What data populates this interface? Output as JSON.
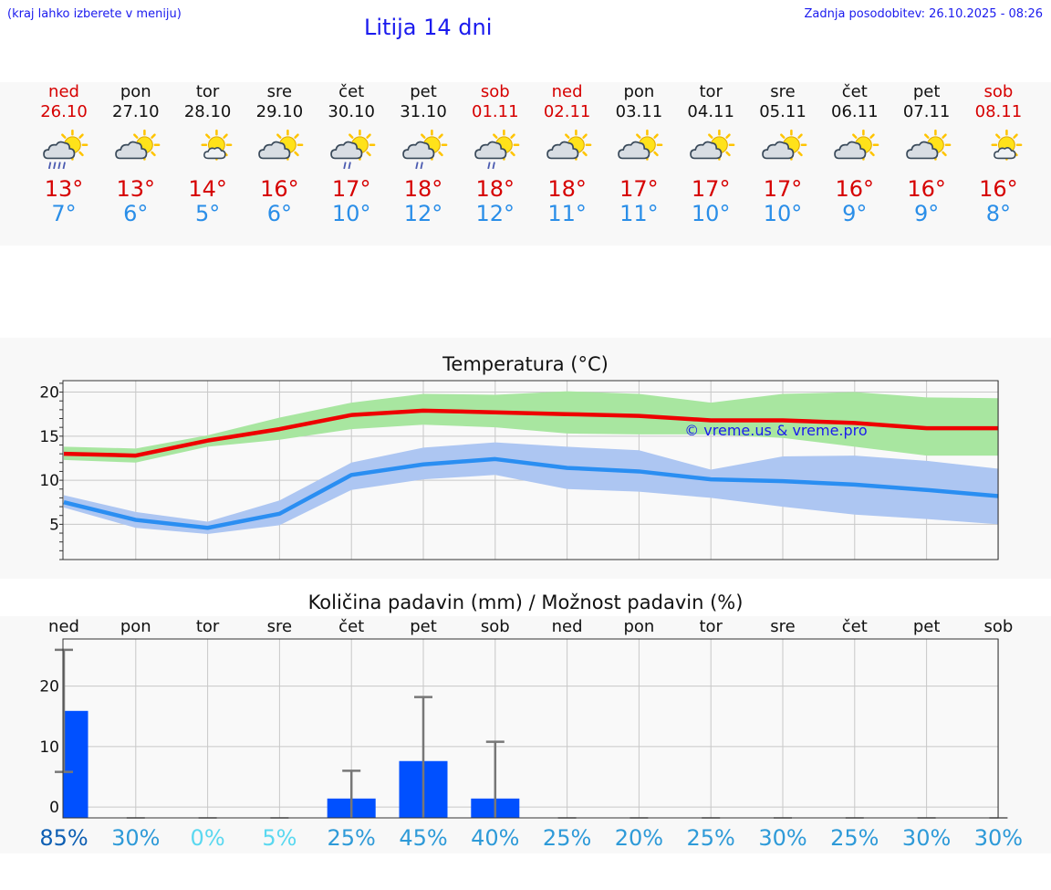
{
  "header": {
    "hint": "(kraj lahko izberete v meniju)",
    "title": "Litija 14 dni",
    "updated": "Zadnja posodobitev: 26.10.2025 - 08:26"
  },
  "days": [
    {
      "name": "ned",
      "date": "26.10",
      "weekend": true,
      "icon": "sun-cloud-heavy-rain-icon",
      "tmax": "13°",
      "tmin": "7°"
    },
    {
      "name": "pon",
      "date": "27.10",
      "weekend": false,
      "icon": "sun-cloud-icon",
      "tmax": "13°",
      "tmin": "6°"
    },
    {
      "name": "tor",
      "date": "28.10",
      "weekend": false,
      "icon": "sun-small-cloud-icon",
      "tmax": "14°",
      "tmin": "5°"
    },
    {
      "name": "sre",
      "date": "29.10",
      "weekend": false,
      "icon": "sun-cloud-icon",
      "tmax": "16°",
      "tmin": "6°"
    },
    {
      "name": "čet",
      "date": "30.10",
      "weekend": false,
      "icon": "sun-cloud-rain-icon",
      "tmax": "17°",
      "tmin": "10°"
    },
    {
      "name": "pet",
      "date": "31.10",
      "weekend": false,
      "icon": "sun-cloud-rain-icon",
      "tmax": "18°",
      "tmin": "12°"
    },
    {
      "name": "sob",
      "date": "01.11",
      "weekend": true,
      "icon": "sun-cloud-rain-icon",
      "tmax": "18°",
      "tmin": "12°"
    },
    {
      "name": "ned",
      "date": "02.11",
      "weekend": true,
      "icon": "sun-cloud-icon",
      "tmax": "18°",
      "tmin": "11°"
    },
    {
      "name": "pon",
      "date": "03.11",
      "weekend": false,
      "icon": "sun-cloud-icon",
      "tmax": "17°",
      "tmin": "11°"
    },
    {
      "name": "tor",
      "date": "04.11",
      "weekend": false,
      "icon": "sun-cloud-icon",
      "tmax": "17°",
      "tmin": "10°"
    },
    {
      "name": "sre",
      "date": "05.11",
      "weekend": false,
      "icon": "sun-cloud-icon",
      "tmax": "17°",
      "tmin": "10°"
    },
    {
      "name": "čet",
      "date": "06.11",
      "weekend": false,
      "icon": "sun-cloud-icon",
      "tmax": "16°",
      "tmin": "9°"
    },
    {
      "name": "pet",
      "date": "07.11",
      "weekend": false,
      "icon": "sun-cloud-icon",
      "tmax": "16°",
      "tmin": "9°"
    },
    {
      "name": "sob",
      "date": "08.11",
      "weekend": true,
      "icon": "sun-small-cloud-icon",
      "tmax": "16°",
      "tmin": "8°"
    }
  ],
  "colors": {
    "weekend": "#d60000",
    "max": "#ee0000",
    "min": "#2a8ef2",
    "max_band": "#a8e6a0",
    "min_band": "#adc6f2",
    "bar": "#0050ff",
    "err": "#777777"
  },
  "chart_data": [
    {
      "type": "line",
      "title": "Temperatura (°C)",
      "watermark": "© vreme.us & vreme.pro",
      "ylim": [
        1,
        21.3
      ],
      "yticks": [
        5,
        10,
        15,
        20
      ],
      "categories": [
        "ned",
        "pon",
        "tor",
        "sre",
        "čet",
        "pet",
        "sob",
        "ned",
        "pon",
        "tor",
        "sre",
        "čet",
        "pet",
        "sob"
      ],
      "series": [
        {
          "name": "max",
          "values": [
            13.0,
            12.8,
            14.5,
            15.8,
            17.4,
            17.9,
            17.7,
            17.5,
            17.3,
            16.8,
            16.8,
            16.5,
            15.9,
            15.9
          ],
          "low": [
            12.3,
            12.0,
            13.8,
            14.6,
            15.8,
            16.3,
            16.0,
            15.3,
            15.2,
            15.2,
            14.8,
            13.8,
            12.8,
            12.8
          ],
          "high": [
            13.8,
            13.6,
            15.1,
            17.1,
            18.8,
            19.8,
            19.7,
            20.1,
            19.8,
            18.8,
            19.8,
            20.0,
            19.4,
            19.3
          ]
        },
        {
          "name": "min",
          "values": [
            7.5,
            5.5,
            4.6,
            6.2,
            10.6,
            11.8,
            12.4,
            11.4,
            11.0,
            10.1,
            9.9,
            9.5,
            8.9,
            8.2
          ],
          "low": [
            6.9,
            4.6,
            3.9,
            4.9,
            8.9,
            10.1,
            10.6,
            9.0,
            8.7,
            8.0,
            7.0,
            6.1,
            5.6,
            5.0
          ],
          "high": [
            8.3,
            6.4,
            5.3,
            7.7,
            12.0,
            13.7,
            14.3,
            13.8,
            13.4,
            11.2,
            12.7,
            12.8,
            12.2,
            11.3
          ]
        }
      ]
    },
    {
      "type": "bar",
      "title": "Količina padavin (mm) / Možnost padavin (%)",
      "ylim": [
        -1.8,
        27.8
      ],
      "yticks": [
        0,
        10,
        20
      ],
      "categories": [
        "ned",
        "pon",
        "tor",
        "sre",
        "čet",
        "pet",
        "sob",
        "ned",
        "pon",
        "tor",
        "sre",
        "čet",
        "pet",
        "sob"
      ],
      "values": [
        15.9,
        0,
        0,
        0,
        1.4,
        7.6,
        1.4,
        0,
        0,
        0,
        0,
        0,
        0,
        0
      ],
      "err_low": [
        5.8,
        0,
        0,
        0,
        0,
        0,
        0,
        0,
        0,
        0,
        0,
        0,
        0,
        0
      ],
      "err_high": [
        26.0,
        0,
        0,
        0,
        6.0,
        18.2,
        10.8,
        0,
        0,
        0,
        0,
        0,
        0,
        0
      ],
      "probability": [
        "85%",
        "30%",
        "0%",
        "5%",
        "25%",
        "45%",
        "40%",
        "25%",
        "20%",
        "25%",
        "30%",
        "25%",
        "30%",
        "30%"
      ],
      "probability_colors": [
        "#0e5fb3",
        "#2e9ad8",
        "#5ad8f0",
        "#5ad8f0",
        "#2e9ad8",
        "#2e9ad8",
        "#2e9ad8",
        "#2e9ad8",
        "#2e9ad8",
        "#2e9ad8",
        "#2e9ad8",
        "#2e9ad8",
        "#2e9ad8",
        "#2e9ad8"
      ]
    }
  ]
}
